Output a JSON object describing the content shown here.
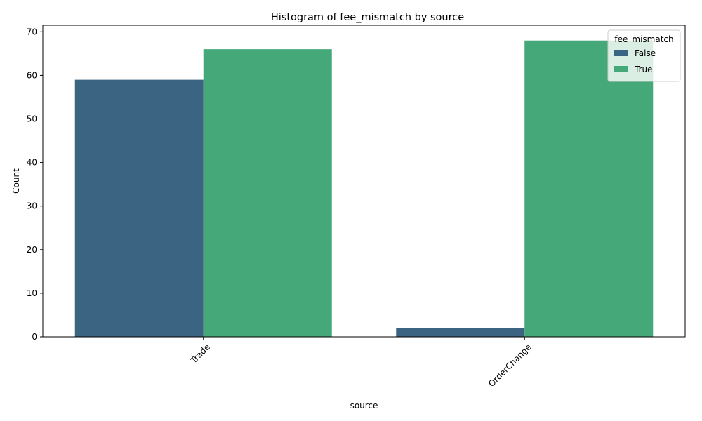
{
  "chart_data": {
    "type": "bar",
    "title": "Histogram of fee_mismatch by source",
    "xlabel": "source",
    "ylabel": "Count",
    "categories": [
      "Trade",
      "OrderChange"
    ],
    "series": [
      {
        "name": "False",
        "values": [
          59,
          2
        ],
        "color": "#3b6382"
      },
      {
        "name": "True",
        "values": [
          66,
          68
        ],
        "color": "#45a879"
      }
    ],
    "ylim": [
      0,
      71.5
    ],
    "yticks": [
      0,
      10,
      20,
      30,
      40,
      50,
      60,
      70
    ],
    "legend": {
      "title": "fee_mismatch",
      "placement": "top-right"
    },
    "grid": false,
    "xtick_rotation": 45
  }
}
